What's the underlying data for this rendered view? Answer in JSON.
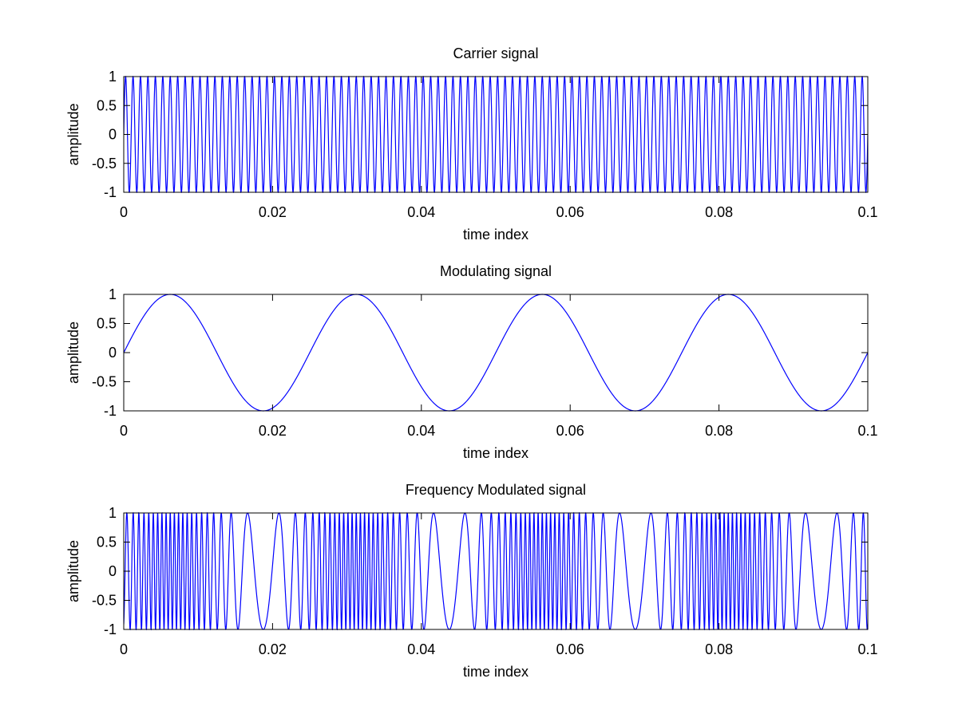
{
  "figure": {
    "background": "#ffffff",
    "line_color": "#0000ff",
    "axis_color": "#000000"
  },
  "chart_data": [
    {
      "type": "line",
      "title": "Carrier signal",
      "xlabel": "time index",
      "ylabel": "amplitude",
      "xlim": [
        0,
        0.1
      ],
      "ylim": [
        -1,
        1
      ],
      "xticks": [
        0,
        0.02,
        0.04,
        0.06,
        0.08,
        0.1
      ],
      "xtick_labels": [
        "0",
        "0.02",
        "0.04",
        "0.06",
        "0.08",
        "0.1"
      ],
      "yticks": [
        1,
        0.5,
        0,
        -0.5,
        -1
      ],
      "ytick_labels": [
        "1",
        "0.5",
        "0",
        "-0.5",
        "-1"
      ],
      "grid": false,
      "series": [
        {
          "function": "sin(2*pi*fc*t)",
          "fc_hz": 1000,
          "amplitude": 1,
          "t_start": 0,
          "t_end": 0.1,
          "color": "#0000ff"
        }
      ]
    },
    {
      "type": "line",
      "title": "Modulating signal",
      "xlabel": "time index",
      "ylabel": "amplitude",
      "xlim": [
        0,
        0.1
      ],
      "ylim": [
        -1,
        1
      ],
      "xticks": [
        0,
        0.02,
        0.04,
        0.06,
        0.08,
        0.1
      ],
      "xtick_labels": [
        "0",
        "0.02",
        "0.04",
        "0.06",
        "0.08",
        "0.1"
      ],
      "yticks": [
        1,
        0.5,
        0,
        -0.5,
        -1
      ],
      "ytick_labels": [
        "1",
        "0.5",
        "0",
        "-0.5",
        "-1"
      ],
      "grid": false,
      "series": [
        {
          "function": "sin(2*pi*fm*t)",
          "fm_hz": 40,
          "amplitude": 1,
          "t_start": 0,
          "t_end": 0.1,
          "color": "#0000ff"
        }
      ]
    },
    {
      "type": "line",
      "title": "Frequency Modulated signal",
      "xlabel": "time index",
      "ylabel": "amplitude",
      "xlim": [
        0,
        0.1
      ],
      "ylim": [
        -1,
        1
      ],
      "xticks": [
        0,
        0.02,
        0.04,
        0.06,
        0.08,
        0.1
      ],
      "xtick_labels": [
        "0",
        "0.02",
        "0.04",
        "0.06",
        "0.08",
        "0.1"
      ],
      "yticks": [
        1,
        0.5,
        0,
        -0.5,
        -1
      ],
      "ytick_labels": [
        "1",
        "0.5",
        "0",
        "-0.5",
        "-1"
      ],
      "grid": false,
      "series": [
        {
          "function": "sin(2*pi*fc*t - beta*cos(2*pi*fm*t))",
          "fc_hz": 1000,
          "fm_hz": 40,
          "beta": 20,
          "amplitude": 1,
          "t_start": 0,
          "t_end": 0.1,
          "color": "#0000ff"
        }
      ]
    }
  ]
}
